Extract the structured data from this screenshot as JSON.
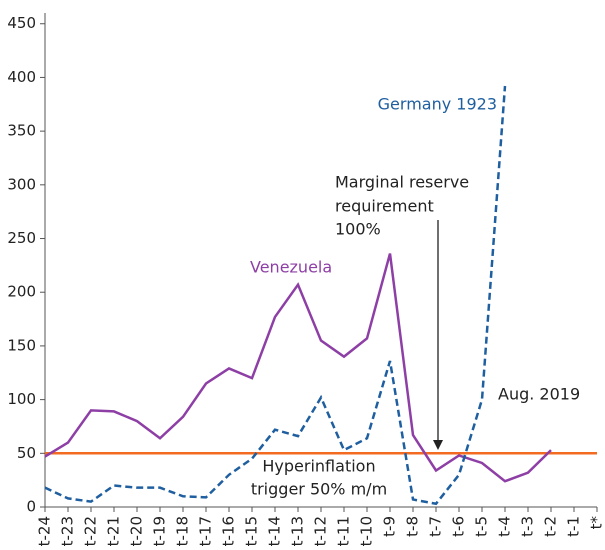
{
  "chart_data": {
    "type": "line",
    "categories": [
      "t-24",
      "t-23",
      "t-22",
      "t-21",
      "t-20",
      "t-19",
      "t-18",
      "t-17",
      "t-16",
      "t-15",
      "t-14",
      "t-13",
      "t-12",
      "t-11",
      "t-10",
      "t-9",
      "t-8",
      "t-7",
      "t-6",
      "t-5",
      "t-4",
      "t-3",
      "t-2",
      "t-1",
      "t*"
    ],
    "series": [
      {
        "name": "Venezuela",
        "color": "#8e3fa6",
        "dash": false,
        "values": [
          47,
          60,
          90,
          89,
          80,
          64,
          84,
          115,
          129,
          120,
          177,
          207,
          155,
          140,
          157,
          236,
          67,
          34,
          48,
          41,
          24,
          32,
          53,
          null,
          null
        ]
      },
      {
        "name": "Germany 1923",
        "color": "#1f5fa0",
        "dash": true,
        "values": [
          18,
          8,
          5,
          20,
          18,
          18,
          10,
          9,
          30,
          45,
          72,
          66,
          102,
          53,
          64,
          136,
          7,
          3,
          30,
          100,
          392,
          null,
          null,
          null,
          null
        ]
      }
    ],
    "threshold": {
      "value": 50,
      "color": "#f26b21",
      "label": "Hyperinflation trigger 50% m/m",
      "lines": [
        "Hyperinflation",
        "trigger 50% m/m"
      ]
    },
    "annotations": {
      "date": "Aug. 2019",
      "reserve": [
        "Marginal reserve",
        "requirement",
        "100%"
      ]
    },
    "ylim": [
      0,
      460
    ],
    "yticks": [
      0,
      50,
      100,
      150,
      200,
      250,
      300,
      350,
      400,
      450
    ],
    "grid": false
  }
}
